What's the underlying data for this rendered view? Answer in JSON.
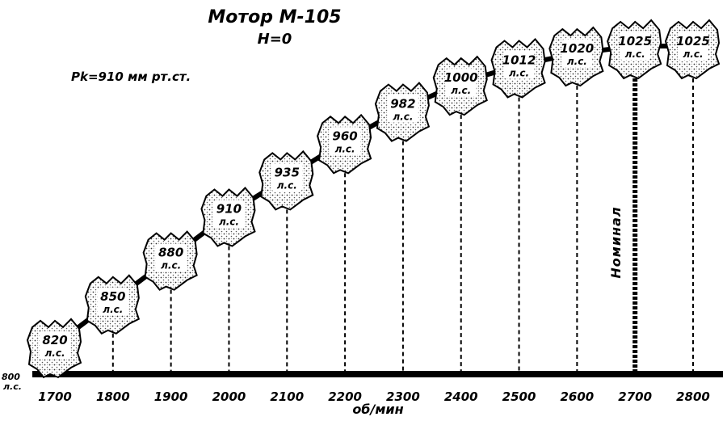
{
  "chart_data": {
    "type": "line",
    "title": "Мотор М-105",
    "subtitle": "H=0",
    "pressure_label": "Pk=910 мм рт.ст.",
    "xlabel": "об/мин",
    "y_base_value": "800",
    "y_base_unit": "л.с.",
    "value_unit": "л.с.",
    "nominal_label": "Номинал",
    "nominal_x": 2700,
    "x": [
      1700,
      1800,
      1900,
      2000,
      2100,
      2200,
      2300,
      2400,
      2500,
      2600,
      2700,
      2800
    ],
    "x_tick_labels": [
      "1700",
      "1800",
      "1900",
      "2000",
      "2100",
      "2200",
      "2300",
      "2400",
      "2500",
      "2600",
      "2700",
      "2800"
    ],
    "series": [
      {
        "values": [
          820,
          850,
          880,
          910,
          935,
          960,
          982,
          1000,
          1012,
          1020,
          1025,
          1025
        ],
        "labels": [
          "820",
          "850",
          "880",
          "910",
          "935",
          "960",
          "982",
          "1000",
          "1012",
          "1020",
          "1025",
          "1025"
        ]
      }
    ],
    "xlim": [
      1700,
      2800
    ],
    "ylim": [
      800,
      1030
    ],
    "grid": false,
    "legend": "none"
  }
}
